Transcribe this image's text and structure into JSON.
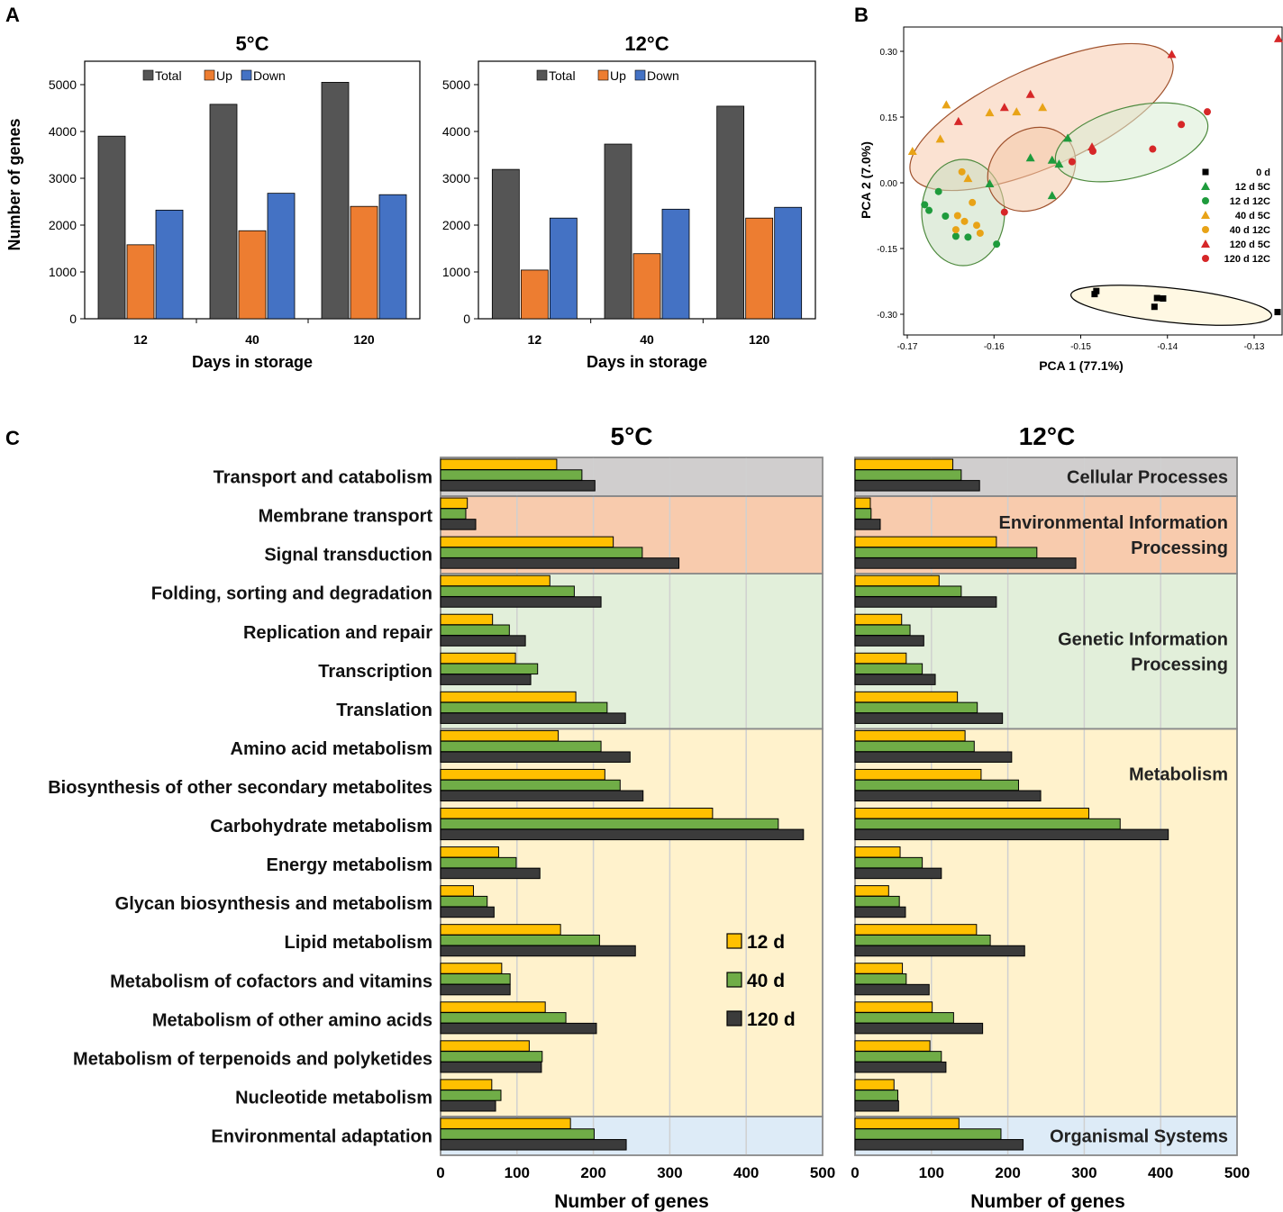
{
  "colors": {
    "total": "#555555",
    "up": "#ED7D31",
    "down": "#4472C4",
    "d12": "#FFC000",
    "d40": "#70AD47",
    "d120": "#3B3B3B",
    "cellular": "#D0CECE",
    "environmental": "#F8CBAD",
    "genetic": "#E2EFDA",
    "metabolism": "#FFF2CC",
    "organismal": "#DDEBF7"
  },
  "panel_labels": {
    "a": "A",
    "b": "B",
    "c": "C"
  },
  "chart_data": [
    {
      "id": "A_5C",
      "type": "bar",
      "title": "5°C",
      "categories": [
        "12",
        "40",
        "120"
      ],
      "series": [
        {
          "name": "Total",
          "values": [
            3900,
            4580,
            5050
          ]
        },
        {
          "name": "Up",
          "values": [
            1580,
            1880,
            2400
          ]
        },
        {
          "name": "Down",
          "values": [
            2320,
            2680,
            2650
          ]
        }
      ],
      "xlabel": "Days in storage",
      "ylabel": "Number of genes",
      "ylim": [
        0,
        5500
      ],
      "yticks": [
        0,
        1000,
        2000,
        3000,
        4000,
        5000
      ],
      "legend": "top"
    },
    {
      "id": "A_12C",
      "type": "bar",
      "title": "12°C",
      "categories": [
        "12",
        "40",
        "120"
      ],
      "series": [
        {
          "name": "Total",
          "values": [
            3190,
            3730,
            4540
          ]
        },
        {
          "name": "Up",
          "values": [
            1040,
            1390,
            2150
          ]
        },
        {
          "name": "Down",
          "values": [
            2150,
            2340,
            2380
          ]
        }
      ],
      "xlabel": "Days in storage",
      "ylabel": "",
      "ylim": [
        0,
        5500
      ],
      "yticks": [
        0,
        1000,
        2000,
        3000,
        4000,
        5000
      ],
      "legend": "top"
    },
    {
      "id": "B",
      "type": "scatter",
      "xlabel": "PCA 1 (77.1%)",
      "ylabel": "PCA 2 (7.0%)",
      "xlim": [
        -0.17,
        -0.125
      ],
      "ylim": [
        -0.33,
        0.33
      ],
      "xticks": [
        -0.17,
        -0.16,
        -0.15,
        -0.14,
        -0.13
      ],
      "xtick_labels": [
        "-0.17",
        "-0.16",
        "-0.15",
        "-0.14",
        "-0.13"
      ],
      "yticks": [
        0.3,
        0.15,
        0.0,
        -0.15,
        -0.3
      ],
      "ytick_labels": [
        "0.30",
        "0.15",
        "0.00",
        "-0.15",
        "-0.30"
      ],
      "legend": "right",
      "series": [
        {
          "name": "0 d",
          "marker": "square",
          "color": "#000000",
          "points": [
            [
              -0.1484,
              -0.254
            ],
            [
              -0.1482,
              -0.247
            ],
            [
              -0.1415,
              -0.283
            ],
            [
              -0.1412,
              -0.263
            ],
            [
              -0.1405,
              -0.264
            ],
            [
              -0.1273,
              -0.295
            ]
          ]
        },
        {
          "name": "12 d  5C",
          "marker": "triangle",
          "color": "#1E9B3C",
          "points": [
            [
              -0.1605,
              -0.002
            ],
            [
              -0.1558,
              0.057
            ],
            [
              -0.1533,
              0.052
            ],
            [
              -0.1525,
              0.043
            ],
            [
              -0.1515,
              0.102
            ],
            [
              -0.1533,
              -0.029
            ]
          ]
        },
        {
          "name": "12 d  12C",
          "marker": "circle",
          "color": "#1E9B3C",
          "points": [
            [
              -0.168,
              -0.05
            ],
            [
              -0.1675,
              -0.063
            ],
            [
              -0.1664,
              -0.02
            ],
            [
              -0.1644,
              -0.122
            ],
            [
              -0.163,
              -0.124
            ],
            [
              -0.1597,
              -0.14
            ],
            [
              -0.1656,
              -0.076
            ]
          ]
        },
        {
          "name": "40 d  5C",
          "marker": "triangle",
          "color": "#E8A317",
          "points": [
            [
              -0.1694,
              0.072
            ],
            [
              -0.1662,
              0.1
            ],
            [
              -0.1655,
              0.178
            ],
            [
              -0.163,
              0.01
            ],
            [
              -0.1605,
              0.16
            ],
            [
              -0.1574,
              0.162
            ],
            [
              -0.1544,
              0.172
            ]
          ]
        },
        {
          "name": "40 d  12C",
          "marker": "circle",
          "color": "#E8A317",
          "points": [
            [
              -0.1637,
              0.025
            ],
            [
              -0.1642,
              -0.075
            ],
            [
              -0.1625,
              -0.045
            ],
            [
              -0.1634,
              -0.088
            ],
            [
              -0.162,
              -0.097
            ],
            [
              -0.1644,
              -0.107
            ],
            [
              -0.1616,
              -0.115
            ]
          ]
        },
        {
          "name": "120 d  5C",
          "marker": "triangle",
          "color": "#D62728",
          "points": [
            [
              -0.1641,
              0.14
            ],
            [
              -0.1588,
              0.172
            ],
            [
              -0.1558,
              0.202
            ],
            [
              -0.1487,
              0.082
            ],
            [
              -0.1395,
              0.293
            ],
            [
              -0.1272,
              0.329
            ]
          ]
        },
        {
          "name": "120 d  12C",
          "marker": "circle",
          "color": "#D62728",
          "points": [
            [
              -0.1588,
              -0.067
            ],
            [
              -0.151,
              0.048
            ],
            [
              -0.1486,
              0.072
            ],
            [
              -0.1417,
              0.077
            ],
            [
              -0.1384,
              0.133
            ],
            [
              -0.1354,
              0.162
            ]
          ]
        }
      ],
      "ellipses": [
        {
          "group": "0 d",
          "fill": "#FFF2CC"
        },
        {
          "group": "120 d 5C / 40 d 5C",
          "fill": "#F8CBAD"
        },
        {
          "group": "12 d 12C / 40 d 12C",
          "fill": "#C9DFC1"
        },
        {
          "group": "12 d 5C / 120 d 12C (middle)",
          "fill": "#F4C9A8"
        },
        {
          "group": "120 d 12C (right)",
          "fill": "#D9ECD3"
        }
      ]
    },
    {
      "id": "C",
      "type": "bar",
      "orientation": "horizontal",
      "titles": [
        "5°C",
        "12°C"
      ],
      "xlabel": "Number of genes",
      "xlim": [
        0,
        500
      ],
      "xticks": [
        0,
        100,
        200,
        300,
        400,
        500
      ],
      "legend": "inside-left-panel",
      "series_names": [
        "12 d",
        "40 d",
        "120 d"
      ],
      "categories": [
        "Transport and catabolism",
        "Membrane transport",
        "Signal transduction",
        "Folding, sorting and degradation",
        "Replication and repair",
        "Transcription",
        "Translation",
        "Amino acid metabolism",
        "Biosynthesis of other secondary metabolites",
        "Carbohydrate metabolism",
        "Energy metabolism",
        "Glycan biosynthesis and metabolism",
        "Lipid metabolism",
        "Metabolism of cofactors and vitamins",
        "Metabolism of other amino acids",
        "Metabolism of terpenoids and polyketides",
        "Nucleotide metabolism",
        "Environmental adaptation"
      ],
      "values_5C": [
        [
          152,
          185,
          202
        ],
        [
          35,
          33,
          46
        ],
        [
          226,
          264,
          312
        ],
        [
          143,
          175,
          210
        ],
        [
          68,
          90,
          111
        ],
        [
          98,
          127,
          118
        ],
        [
          177,
          218,
          242
        ],
        [
          154,
          210,
          248
        ],
        [
          215,
          235,
          265
        ],
        [
          356,
          442,
          475
        ],
        [
          76,
          99,
          130
        ],
        [
          43,
          61,
          70
        ],
        [
          157,
          208,
          255
        ],
        [
          80,
          91,
          91
        ],
        [
          137,
          164,
          204
        ],
        [
          116,
          133,
          132
        ],
        [
          67,
          79,
          72
        ],
        [
          170,
          201,
          243
        ]
      ],
      "values_12C": [
        [
          128,
          139,
          163
        ],
        [
          20,
          21,
          33
        ],
        [
          185,
          238,
          289
        ],
        [
          110,
          139,
          185
        ],
        [
          61,
          72,
          90
        ],
        [
          67,
          88,
          105
        ],
        [
          134,
          160,
          193
        ],
        [
          144,
          156,
          205
        ],
        [
          165,
          214,
          243
        ],
        [
          306,
          347,
          410
        ],
        [
          59,
          88,
          113
        ],
        [
          44,
          58,
          66
        ],
        [
          159,
          177,
          222
        ],
        [
          62,
          67,
          97
        ],
        [
          101,
          129,
          167
        ],
        [
          98,
          113,
          119
        ],
        [
          51,
          56,
          57
        ],
        [
          136,
          191,
          220
        ]
      ],
      "groups": [
        {
          "label": "Cellular Processes",
          "start": 0,
          "end": 0,
          "color": "#D0CECE"
        },
        {
          "label": "Environmental Information Processing",
          "lines": [
            "Environmental Information",
            "Processing"
          ],
          "start": 1,
          "end": 2,
          "color": "#F8CBAD"
        },
        {
          "label": "Genetic Information Processing",
          "lines": [
            "Genetic Information",
            "Processing"
          ],
          "start": 3,
          "end": 6,
          "color": "#E2EFDA"
        },
        {
          "label": "Metabolism",
          "start": 7,
          "end": 16,
          "color": "#FFF2CC"
        },
        {
          "label": "Organismal Systems",
          "start": 17,
          "end": 17,
          "color": "#DDEBF7"
        }
      ]
    }
  ]
}
